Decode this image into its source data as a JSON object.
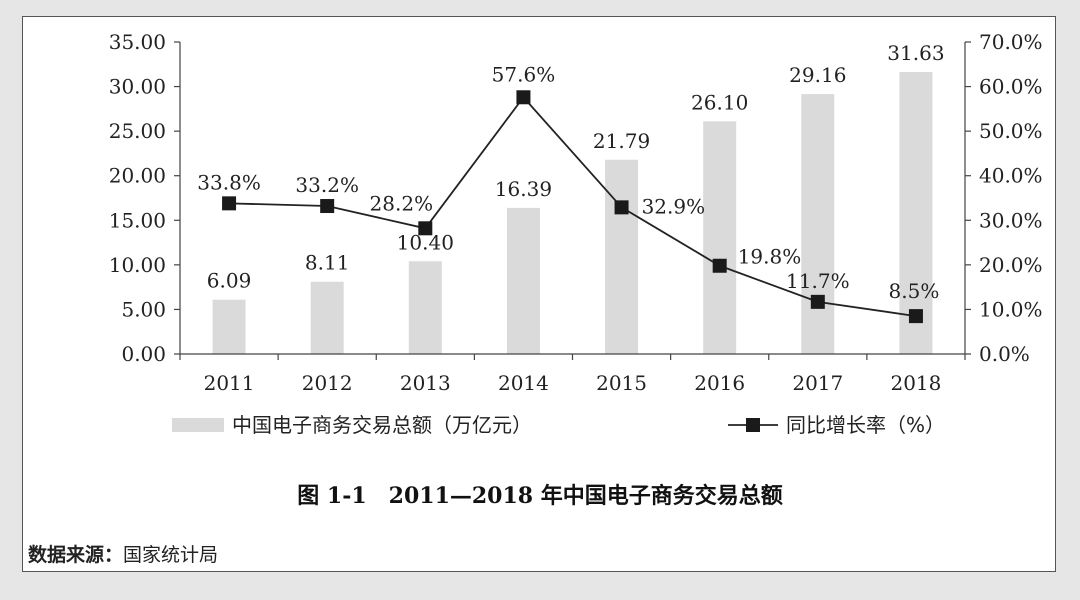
{
  "caption": "图 1-1　2011—2018 年中国电子商务交易总额",
  "source": {
    "label": "数据来源：",
    "value": "国家统计局"
  },
  "colors": {
    "bar": "#dadada",
    "line": "#222222",
    "marker": "#1a1a1a",
    "frame": "#555555"
  },
  "chart_data": {
    "type": "bar+line",
    "categories": [
      "2011",
      "2012",
      "2013",
      "2014",
      "2015",
      "2016",
      "2017",
      "2018"
    ],
    "series": [
      {
        "name": "中国电子商务交易总额（万亿元）",
        "type": "bar",
        "axis": "left",
        "values": [
          6.09,
          8.11,
          10.4,
          16.39,
          21.79,
          26.1,
          29.16,
          31.63
        ],
        "labels": [
          "6.09",
          "8.11",
          "10.40",
          "16.39",
          "21.79",
          "26.10",
          "29.16",
          "31.63"
        ]
      },
      {
        "name": "同比增长率（%）",
        "type": "line",
        "axis": "right",
        "values": [
          33.8,
          33.2,
          28.2,
          57.6,
          32.9,
          19.8,
          11.7,
          8.5
        ],
        "labels": [
          "33.8%",
          "33.2%",
          "28.2%",
          "57.6%",
          "32.9%",
          "19.8%",
          "11.7%",
          "8.5%"
        ]
      }
    ],
    "y_left": {
      "range": [
        0,
        35
      ],
      "ticks": [
        "0.00",
        "5.00",
        "10.00",
        "15.00",
        "20.00",
        "25.00",
        "30.00",
        "35.00"
      ]
    },
    "y_right": {
      "range": [
        0,
        70
      ],
      "ticks": [
        "0.0%",
        "10.0%",
        "20.0%",
        "30.0%",
        "40.0%",
        "50.0%",
        "60.0%",
        "70.0%"
      ]
    },
    "grid": false,
    "legend_position": "bottom"
  }
}
